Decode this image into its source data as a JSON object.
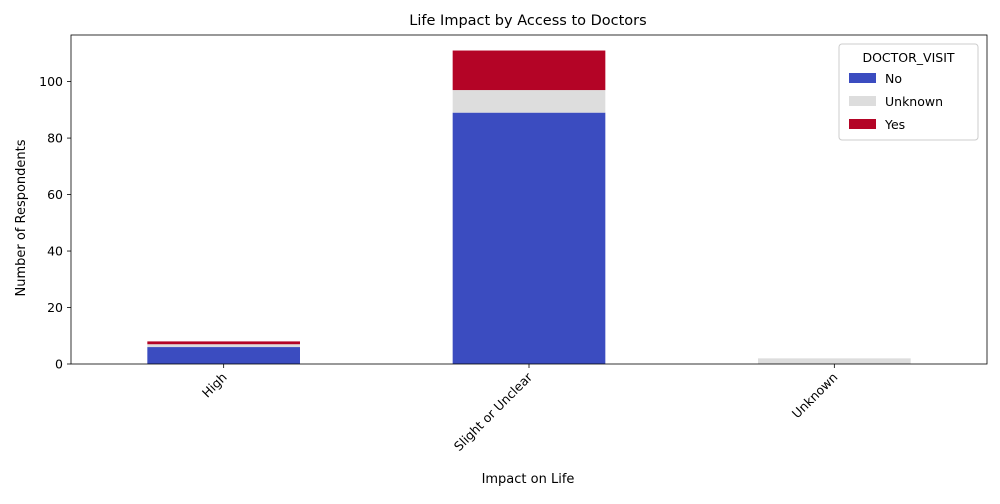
{
  "chart_data": {
    "type": "bar",
    "stacked": true,
    "title": "Life Impact by Access to Doctors",
    "xlabel": "Impact on Life",
    "ylabel": "Number of Respondents",
    "categories": [
      "High",
      "Slight or Unclear",
      "Unknown"
    ],
    "series": [
      {
        "name": "No",
        "color": "#3b4cc0",
        "values": [
          6,
          89,
          0
        ]
      },
      {
        "name": "Unknown",
        "color": "#dddddd",
        "values": [
          1,
          8,
          2
        ]
      },
      {
        "name": "Yes",
        "color": "#b40426",
        "values": [
          1,
          14,
          0
        ]
      }
    ],
    "ylim": [
      0,
      116.5
    ],
    "yticks": [
      0,
      20,
      40,
      60,
      80,
      100
    ],
    "grid": false,
    "legend": {
      "title": "DOCTOR_VISIT",
      "position": "top-right"
    }
  }
}
